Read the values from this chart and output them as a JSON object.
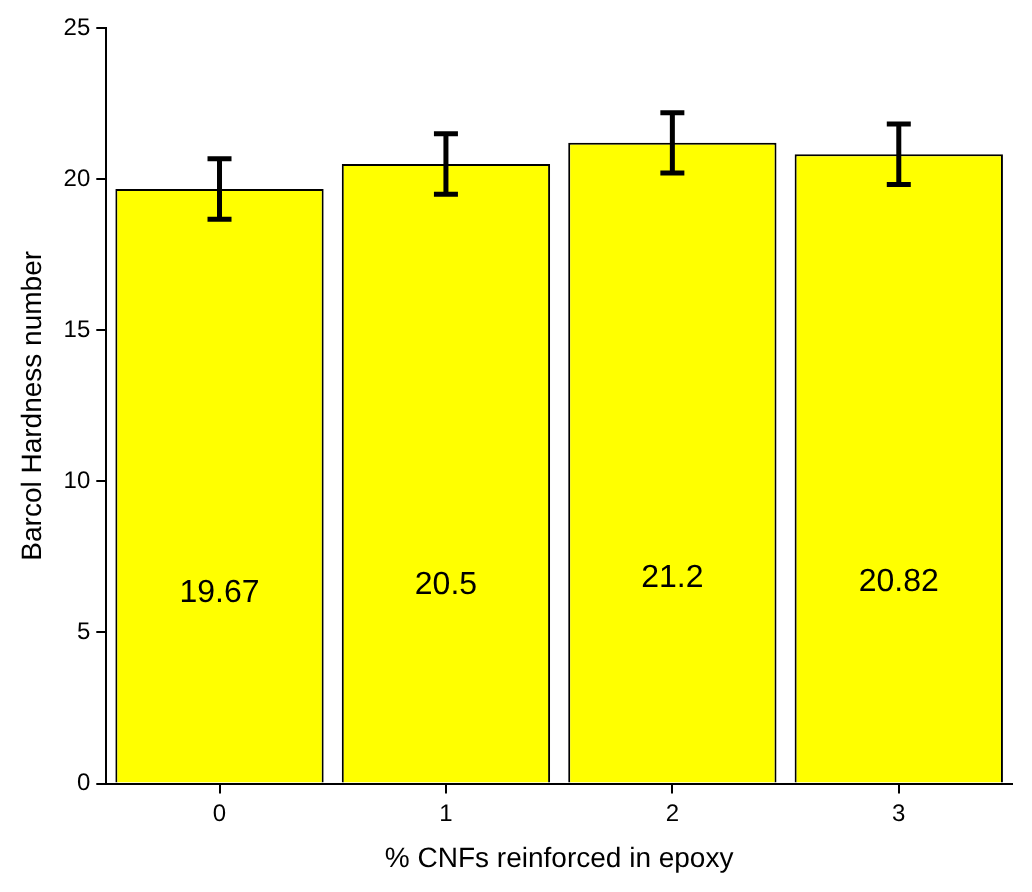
{
  "chart_data": {
    "type": "bar",
    "xlabel": "% CNFs reinforced in epoxy",
    "ylabel": "Barcol Hardness number",
    "categories": [
      "0",
      "1",
      "2",
      "3"
    ],
    "values": [
      19.67,
      20.5,
      21.2,
      20.82
    ],
    "errors": [
      1,
      1,
      1,
      1
    ],
    "color": "#ffff00",
    "ylim": [
      0,
      25
    ],
    "yticks": [
      0,
      5,
      10,
      15,
      20,
      25
    ],
    "grid": false,
    "legend": false,
    "data_labels": true
  }
}
